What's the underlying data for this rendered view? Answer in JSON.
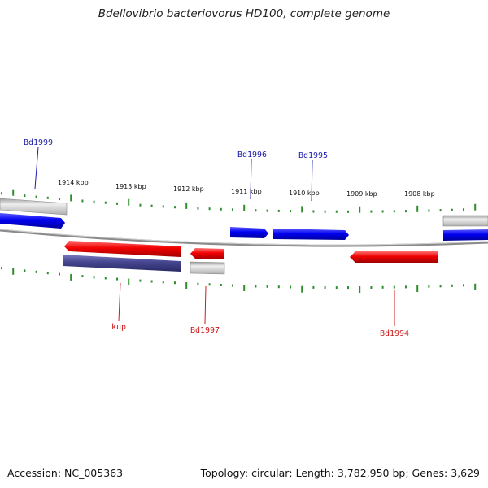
{
  "title": "Bdellovibrio bacteriovorus HD100, complete genome",
  "footer": {
    "accession": "Accession: NC_005363",
    "summary": "Topology: circular; Length: 3,782,950 bp; Genes: 3,629"
  },
  "colors": {
    "forward_gene": "#1010ee",
    "reverse_gene": "#ee1010",
    "other_feature": "#c8c8c8",
    "reverse_cds_dark": "#4a4a96",
    "ticks": "#2f8f2f",
    "backbone": "#888888",
    "label_forward": "#1a1aaa",
    "label_reverse": "#cc1a1a"
  },
  "scale_labels": [
    "1914 kbp",
    "1913 kbp",
    "1912 kbp",
    "1911 kbp",
    "1910 kbp",
    "1909 kbp",
    "1908 kbp"
  ],
  "gene_labels": {
    "bd1999": "Bd1999",
    "bd1996": "Bd1996",
    "bd1995": "Bd1995",
    "kup": "kup",
    "bd1997": "Bd1997",
    "bd1994": "Bd1994"
  }
}
